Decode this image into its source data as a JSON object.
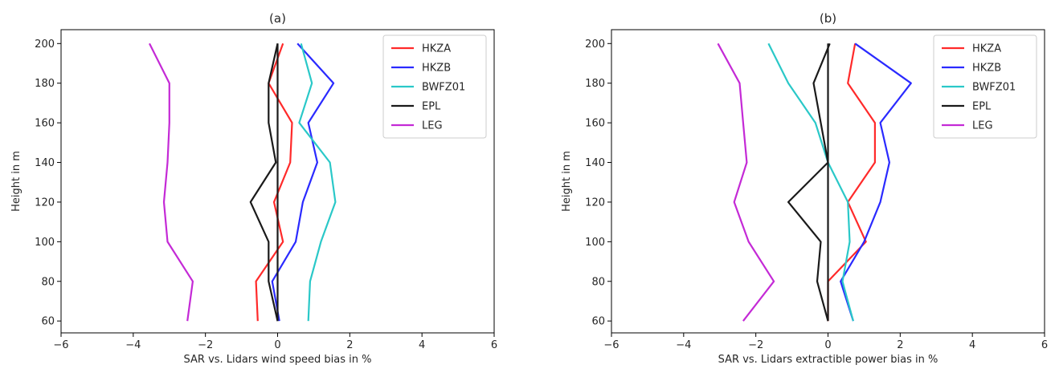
{
  "chart_data": [
    {
      "type": "line",
      "title": "(a)",
      "xlabel": "SAR vs. Lidars wind speed bias in %",
      "ylabel": "Height in m",
      "xlim": [
        -6,
        6
      ],
      "ylim": [
        54,
        207
      ],
      "xticks": [
        -6,
        -4,
        -2,
        0,
        2,
        4,
        6
      ],
      "yticks": [
        60,
        80,
        100,
        120,
        140,
        160,
        180,
        200
      ],
      "grid": false,
      "legend_position": "top-right",
      "y": [
        60,
        80,
        100,
        120,
        140,
        160,
        180,
        200
      ],
      "series": [
        {
          "name": "HKZA",
          "color": "#ff2a2a",
          "values": [
            -0.55,
            -0.6,
            0.15,
            -0.1,
            0.35,
            0.4,
            -0.25,
            0.15
          ]
        },
        {
          "name": "HKZB",
          "color": "#2a2aff",
          "values": [
            0.05,
            -0.15,
            0.5,
            0.7,
            1.1,
            0.85,
            1.55,
            0.55
          ]
        },
        {
          "name": "BWFZ01",
          "color": "#2ac8c8",
          "values": [
            0.85,
            0.9,
            1.2,
            1.6,
            1.45,
            0.6,
            0.95,
            0.65
          ]
        },
        {
          "name": "EPL",
          "color": "#1a1a1a",
          "values": [
            0.0,
            -0.25,
            -0.25,
            -0.75,
            -0.05,
            -0.25,
            -0.25,
            0.0
          ]
        },
        {
          "name": "LEG",
          "color": "#c42ad6",
          "values": [
            -2.5,
            -2.35,
            -3.05,
            -3.15,
            -3.05,
            -3.0,
            -3.0,
            -3.55
          ]
        }
      ],
      "reference_line": {
        "x": 0,
        "color": "#1a1a1a"
      }
    },
    {
      "type": "line",
      "title": "(b)",
      "xlabel": "SAR vs. Lidars extractible power bias in %",
      "ylabel": "Height in m",
      "xlim": [
        -6,
        6
      ],
      "ylim": [
        54,
        207
      ],
      "xticks": [
        -6,
        -4,
        -2,
        0,
        2,
        4,
        6
      ],
      "yticks": [
        60,
        80,
        100,
        120,
        140,
        160,
        180,
        200
      ],
      "grid": false,
      "legend_position": "top-right",
      "y": [
        60,
        80,
        100,
        120,
        140,
        160,
        180,
        200
      ],
      "series": [
        {
          "name": "HKZA",
          "color": "#ff2a2a",
          "values": [
            0.0,
            0.0,
            1.05,
            0.55,
            1.3,
            1.3,
            0.55,
            0.75
          ]
        },
        {
          "name": "HKZB",
          "color": "#2a2aff",
          "values": [
            0.7,
            0.35,
            1.0,
            1.45,
            1.7,
            1.45,
            2.3,
            0.75
          ]
        },
        {
          "name": "BWFZ01",
          "color": "#2ac8c8",
          "values": [
            0.7,
            0.4,
            0.6,
            0.55,
            0.0,
            -0.35,
            -1.1,
            -1.65
          ]
        },
        {
          "name": "EPL",
          "color": "#1a1a1a",
          "values": [
            0.0,
            -0.3,
            -0.2,
            -1.1,
            0.0,
            -0.2,
            -0.4,
            0.05
          ]
        },
        {
          "name": "LEG",
          "color": "#c42ad6",
          "values": [
            -2.35,
            -1.5,
            -2.2,
            -2.6,
            -2.25,
            -2.35,
            -2.45,
            -3.05
          ]
        }
      ],
      "reference_line": {
        "x": 0,
        "color": "#1a1a1a"
      }
    }
  ]
}
